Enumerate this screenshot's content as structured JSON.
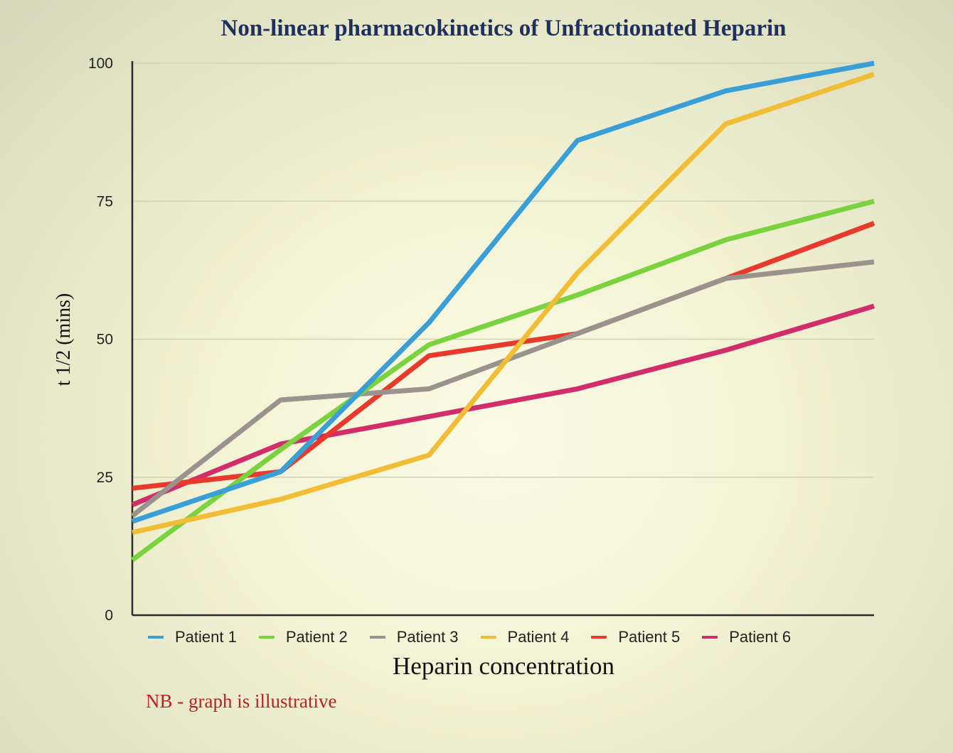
{
  "chart_data": {
    "type": "line",
    "title": "Non-linear pharmacokinetics of Unfractionated Heparin",
    "xlabel": "Heparin concentration",
    "ylabel": "t 1/2 (mins)",
    "ylim": [
      0,
      100
    ],
    "yticks": [
      "0",
      "25",
      "50",
      "75",
      "100"
    ],
    "grid": true,
    "legend_position": "bottom",
    "x": [
      1,
      2,
      3,
      4,
      5,
      6
    ],
    "series": [
      {
        "name": "Patient 1",
        "color": "#3a9fd6",
        "values": [
          17,
          26,
          53,
          86,
          95,
          100
        ]
      },
      {
        "name": "Patient 2",
        "color": "#7bd23f",
        "values": [
          10,
          30,
          49,
          58,
          68,
          75
        ]
      },
      {
        "name": "Patient 3",
        "color": "#9a928c",
        "values": [
          18,
          39,
          41,
          51,
          61,
          64
        ]
      },
      {
        "name": "Patient 4",
        "color": "#f0bd35",
        "values": [
          15,
          21,
          29,
          62,
          89,
          98
        ]
      },
      {
        "name": "Patient 5",
        "color": "#e73a2c",
        "values": [
          23,
          26,
          47,
          51,
          61,
          71
        ]
      },
      {
        "name": "Patient 6",
        "color": "#d02d6a",
        "values": [
          20,
          31,
          36,
          41,
          48,
          56
        ]
      }
    ]
  },
  "note": "NB - graph is illustrative"
}
